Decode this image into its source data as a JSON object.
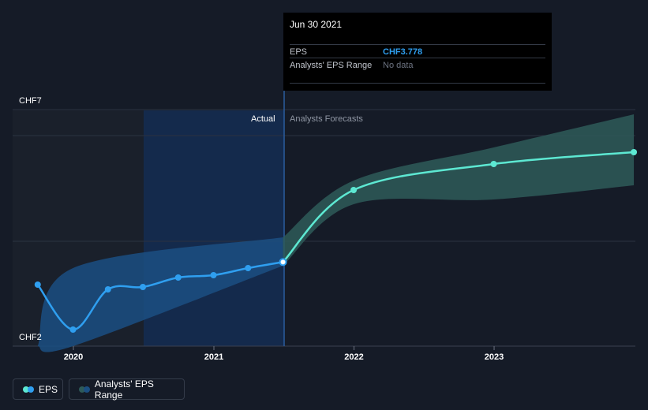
{
  "tooltip": {
    "date": "Jun 30 2021",
    "eps_label": "EPS",
    "eps_value": "CHF3.778",
    "range_label": "Analysts' EPS Range",
    "range_value": "No data"
  },
  "labels": {
    "actual": "Actual",
    "forecast": "Analysts Forecasts"
  },
  "legend": {
    "eps": "EPS",
    "range": "Analysts' EPS Range"
  },
  "colors": {
    "background": "#151b27",
    "eps_actual": "#2f9ff0",
    "eps_forecast": "#5de8d2",
    "forecast_band": "#2e5a59",
    "actual_band": "#1b4f82"
  },
  "chart_data": {
    "type": "line",
    "yticks": [
      "CHF7",
      "CHF2"
    ],
    "xticks": [
      "2020",
      "2021",
      "2022",
      "2023"
    ],
    "ylim": [
      2,
      7
    ],
    "series": [
      {
        "name": "EPS",
        "segment": "actual",
        "x": [
          "2019-09-30",
          "2019-12-31",
          "2020-03-31",
          "2020-06-30",
          "2020-09-30",
          "2020-12-31",
          "2021-03-31",
          "2021-06-30"
        ],
        "values": [
          3.3,
          2.35,
          3.2,
          3.25,
          3.45,
          3.5,
          3.65,
          3.778
        ]
      },
      {
        "name": "EPS",
        "segment": "forecast",
        "x": [
          "2021-06-30",
          "2021-12-31",
          "2022-12-31",
          "2023-12-31"
        ],
        "values": [
          3.778,
          5.3,
          5.85,
          6.1
        ]
      }
    ],
    "range_band": {
      "name": "Analysts' EPS Range",
      "x": [
        "2019-09-30",
        "2019-12-31",
        "2021-06-30",
        "2021-12-31",
        "2022-12-31",
        "2023-12-31"
      ],
      "low": [
        2.0,
        2.0,
        3.7,
        5.0,
        5.1,
        5.4
      ],
      "high": [
        2.0,
        3.65,
        4.3,
        5.5,
        6.2,
        6.9
      ]
    },
    "forecast_start": "2021-06-30"
  }
}
